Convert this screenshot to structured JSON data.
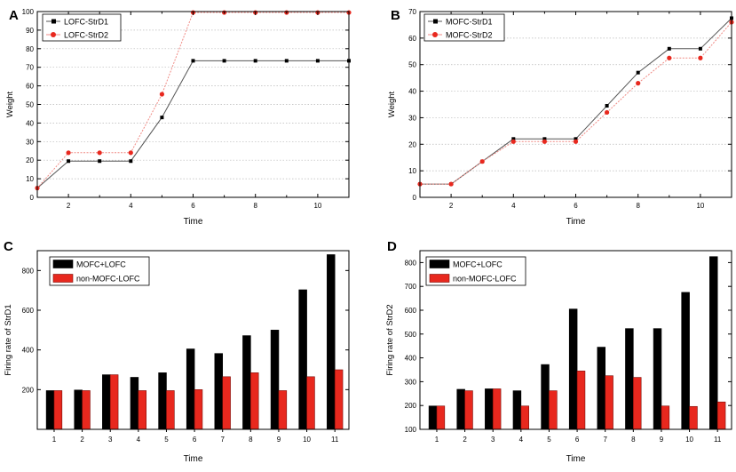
{
  "chart_data": [
    {
      "panel": "A",
      "type": "line",
      "xlabel": "Time",
      "ylabel": "Weight",
      "xlim": [
        1,
        11
      ],
      "ylim": [
        0,
        100
      ],
      "xticks": [
        2,
        4,
        6,
        8,
        10
      ],
      "yticks": [
        0,
        10,
        20,
        30,
        40,
        50,
        60,
        70,
        80,
        90,
        100
      ],
      "grid": true,
      "legend_position": "top-left",
      "series": [
        {
          "name": "LOFC-StrD1",
          "color": "#000000",
          "marker": "square",
          "x": [
            1,
            2,
            3,
            4,
            5,
            6,
            7,
            8,
            9,
            10,
            11
          ],
          "y": [
            5,
            19.5,
            19.5,
            19.5,
            43,
            73.5,
            73.5,
            73.5,
            73.5,
            73.5,
            73.5
          ]
        },
        {
          "name": "LOFC-StrD2",
          "color": "#e8281e",
          "marker": "circle",
          "x": [
            1,
            2,
            3,
            4,
            5,
            6,
            7,
            8,
            9,
            10,
            11
          ],
          "y": [
            5,
            24,
            24,
            24,
            55.5,
            99.5,
            99.5,
            99.5,
            99.5,
            99.5,
            99.5
          ]
        }
      ]
    },
    {
      "panel": "B",
      "type": "line",
      "xlabel": "Time",
      "ylabel": "Weight",
      "xlim": [
        1,
        11
      ],
      "ylim": [
        0,
        70
      ],
      "xticks": [
        2,
        4,
        6,
        8,
        10
      ],
      "yticks": [
        0,
        10,
        20,
        30,
        40,
        50,
        60,
        70
      ],
      "grid": true,
      "legend_position": "top-left",
      "series": [
        {
          "name": "MOFC-StrD1",
          "color": "#000000",
          "marker": "square",
          "x": [
            1,
            2,
            3,
            4,
            5,
            6,
            7,
            8,
            9,
            10,
            11
          ],
          "y": [
            5,
            5,
            13.5,
            22,
            22,
            22,
            34.5,
            47,
            56,
            56,
            67.5
          ]
        },
        {
          "name": "MOFC-StrD2",
          "color": "#e8281e",
          "marker": "circle",
          "x": [
            1,
            2,
            3,
            4,
            5,
            6,
            7,
            8,
            9,
            10,
            11
          ],
          "y": [
            5,
            5,
            13.5,
            21,
            21,
            21,
            32,
            43,
            52.5,
            52.5,
            66
          ]
        }
      ]
    },
    {
      "panel": "C",
      "type": "bar",
      "xlabel": "Time",
      "ylabel": "Firing rate of StrD1",
      "categories": [
        "1",
        "2",
        "3",
        "4",
        "5",
        "6",
        "7",
        "8",
        "9",
        "10",
        "11"
      ],
      "ylim": [
        0,
        900
      ],
      "yticks": [
        200,
        400,
        600,
        800
      ],
      "grid": false,
      "legend_position": "top-left",
      "series": [
        {
          "name": "MOFC+LOFC",
          "color": "#000000",
          "values": [
            195,
            198,
            275,
            262,
            285,
            405,
            382,
            472,
            500,
            703,
            880
          ]
        },
        {
          "name": "non-MOFC-LOFC",
          "color": "#e8281e",
          "values": [
            195,
            195,
            275,
            195,
            195,
            200,
            265,
            285,
            195,
            265,
            300
          ]
        }
      ]
    },
    {
      "panel": "D",
      "type": "bar",
      "xlabel": "Time",
      "ylabel": "Firing rate of StrD2",
      "categories": [
        "1",
        "2",
        "3",
        "4",
        "5",
        "6",
        "7",
        "8",
        "9",
        "10",
        "11"
      ],
      "ylim": [
        100,
        850
      ],
      "yticks": [
        100,
        200,
        300,
        400,
        500,
        600,
        700,
        800
      ],
      "grid": false,
      "legend_position": "top-left",
      "series": [
        {
          "name": "MOFC+LOFC",
          "color": "#000000",
          "values": [
            198,
            268,
            270,
            262,
            372,
            605,
            445,
            523,
            523,
            675,
            825
          ]
        },
        {
          "name": "non-MOFC-LOFC",
          "color": "#e8281e",
          "values": [
            198,
            262,
            270,
            198,
            262,
            345,
            325,
            318,
            198,
            196,
            215
          ]
        }
      ]
    }
  ]
}
